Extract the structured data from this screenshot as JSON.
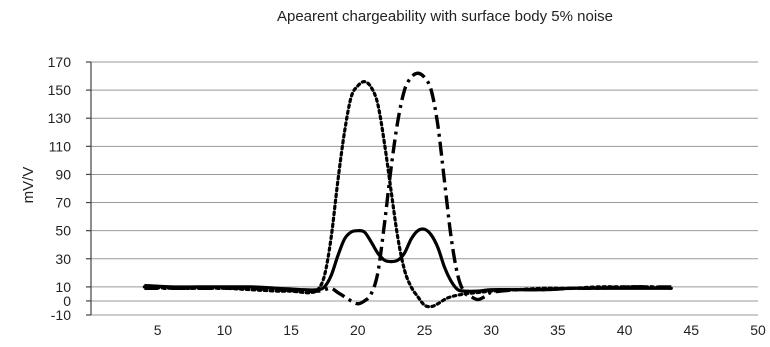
{
  "chart_data": {
    "type": "line",
    "title": "Apearent chargeability with surface body 5% noise",
    "xlabel": "",
    "ylabel": "mV/V",
    "xlim": [
      0,
      50
    ],
    "ylim": [
      -10,
      170
    ],
    "x_ticks": [
      5,
      10,
      15,
      20,
      25,
      30,
      35,
      40,
      45,
      50
    ],
    "y_ticks": [
      -10,
      0,
      10,
      30,
      50,
      70,
      90,
      110,
      130,
      150,
      170
    ],
    "grid": "horizontal",
    "legend": "none",
    "series": [
      {
        "style": "solid",
        "color": "#000000",
        "points": [
          [
            4,
            11
          ],
          [
            6,
            10
          ],
          [
            8,
            10
          ],
          [
            10,
            10
          ],
          [
            12,
            10
          ],
          [
            14,
            9
          ],
          [
            16,
            8
          ],
          [
            17,
            8
          ],
          [
            17.5,
            10
          ],
          [
            18,
            18
          ],
          [
            18.5,
            32
          ],
          [
            19,
            44
          ],
          [
            19.5,
            49
          ],
          [
            20,
            50
          ],
          [
            20.5,
            49
          ],
          [
            21,
            42
          ],
          [
            21.5,
            34
          ],
          [
            22,
            29
          ],
          [
            22.5,
            28
          ],
          [
            23,
            29
          ],
          [
            23.5,
            34
          ],
          [
            24,
            44
          ],
          [
            24.5,
            50
          ],
          [
            25,
            51
          ],
          [
            25.5,
            47
          ],
          [
            26,
            38
          ],
          [
            26.5,
            24
          ],
          [
            27,
            14
          ],
          [
            27.5,
            8
          ],
          [
            28,
            7
          ],
          [
            29,
            7
          ],
          [
            30,
            8
          ],
          [
            32,
            8
          ],
          [
            34,
            8
          ],
          [
            36,
            9
          ],
          [
            38,
            9
          ],
          [
            40,
            9
          ],
          [
            42,
            9
          ],
          [
            43.5,
            9
          ]
        ]
      },
      {
        "style": "dotted",
        "color": "#000000",
        "points": [
          [
            4,
            10
          ],
          [
            6,
            9
          ],
          [
            8,
            9
          ],
          [
            10,
            9
          ],
          [
            12,
            8
          ],
          [
            14,
            7
          ],
          [
            15,
            7
          ],
          [
            16,
            6
          ],
          [
            16.5,
            6
          ],
          [
            17,
            8
          ],
          [
            17.5,
            18
          ],
          [
            18,
            45
          ],
          [
            18.5,
            85
          ],
          [
            19,
            120
          ],
          [
            19.5,
            145
          ],
          [
            20,
            153
          ],
          [
            20.5,
            156
          ],
          [
            21,
            152
          ],
          [
            21.5,
            140
          ],
          [
            22,
            112
          ],
          [
            22.5,
            78
          ],
          [
            23,
            45
          ],
          [
            23.5,
            22
          ],
          [
            24,
            10
          ],
          [
            24.5,
            3
          ],
          [
            25,
            -3
          ],
          [
            25.5,
            -4
          ],
          [
            26,
            -2
          ],
          [
            26.5,
            1
          ],
          [
            27,
            3
          ],
          [
            28,
            5
          ],
          [
            29,
            6
          ],
          [
            30,
            7
          ],
          [
            32,
            8
          ],
          [
            34,
            9
          ],
          [
            36,
            9
          ],
          [
            38,
            10
          ],
          [
            40,
            10
          ],
          [
            42,
            10
          ],
          [
            43.5,
            9
          ]
        ]
      },
      {
        "style": "dash-dot",
        "color": "#000000",
        "points": [
          [
            4,
            9
          ],
          [
            6,
            9
          ],
          [
            8,
            9
          ],
          [
            10,
            9
          ],
          [
            12,
            9
          ],
          [
            14,
            8
          ],
          [
            16,
            7
          ],
          [
            17,
            7
          ],
          [
            17.5,
            8
          ],
          [
            18,
            9
          ],
          [
            18.5,
            6
          ],
          [
            19,
            3
          ],
          [
            19.5,
            0
          ],
          [
            20,
            -2
          ],
          [
            20.5,
            0
          ],
          [
            21,
            5
          ],
          [
            21.5,
            20
          ],
          [
            22,
            55
          ],
          [
            22.5,
            95
          ],
          [
            23,
            128
          ],
          [
            23.5,
            150
          ],
          [
            24,
            159
          ],
          [
            24.5,
            162
          ],
          [
            25,
            159
          ],
          [
            25.5,
            150
          ],
          [
            26,
            125
          ],
          [
            26.5,
            85
          ],
          [
            27,
            45
          ],
          [
            27.5,
            18
          ],
          [
            28,
            6
          ],
          [
            28.5,
            3
          ],
          [
            29,
            1
          ],
          [
            29.5,
            3
          ],
          [
            30,
            6
          ],
          [
            32,
            8
          ],
          [
            34,
            8
          ],
          [
            36,
            9
          ],
          [
            38,
            9
          ],
          [
            40,
            10
          ],
          [
            42,
            10
          ],
          [
            43.5,
            10
          ]
        ]
      }
    ]
  }
}
